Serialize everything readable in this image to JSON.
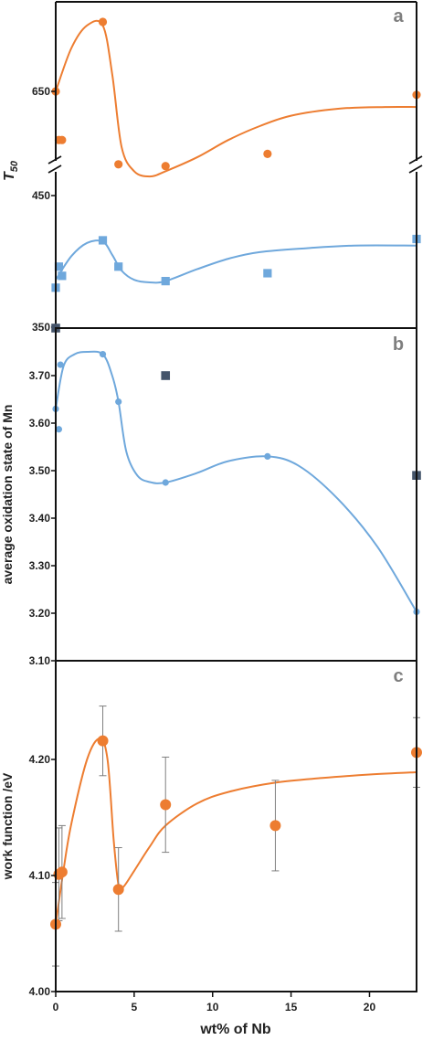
{
  "chart_data": [
    {
      "panel": "a",
      "type": "scatter",
      "ylabel": "T",
      "ylabel_sub": "50",
      "xlim": [
        0,
        23
      ],
      "axis_break": true,
      "upper_segment": {
        "yticks": [
          {
            "value": 650,
            "label": "650"
          }
        ]
      },
      "lower_segment": {
        "yticks": [
          {
            "value": 450,
            "label": "450"
          },
          {
            "value": 350,
            "label": "350"
          }
        ]
      },
      "series": [
        {
          "color": "#ED7D31",
          "marker": "circle",
          "segment": "upper",
          "points": [
            {
              "x": 0,
              "y": 650
            },
            {
              "x": 0.2,
              "y": 622
            },
            {
              "x": 0.4,
              "y": 622
            },
            {
              "x": 3,
              "y": 690
            },
            {
              "x": 4,
              "y": 608
            },
            {
              "x": 7,
              "y": 607
            },
            {
              "x": 13.5,
              "y": 614
            },
            {
              "x": 23,
              "y": 648
            }
          ],
          "curve": [
            {
              "x": 0,
              "y": 650
            },
            {
              "x": 1,
              "y": 675
            },
            {
              "x": 2,
              "y": 688
            },
            {
              "x": 3,
              "y": 688
            },
            {
              "x": 3.6,
              "y": 660
            },
            {
              "x": 4.2,
              "y": 618
            },
            {
              "x": 5,
              "y": 604
            },
            {
              "x": 6,
              "y": 601
            },
            {
              "x": 7,
              "y": 604
            },
            {
              "x": 9,
              "y": 612
            },
            {
              "x": 11,
              "y": 622
            },
            {
              "x": 13,
              "y": 630
            },
            {
              "x": 15,
              "y": 636
            },
            {
              "x": 18,
              "y": 640
            },
            {
              "x": 21,
              "y": 641
            },
            {
              "x": 23,
              "y": 641
            }
          ]
        },
        {
          "color": "#6FA8DC",
          "marker": "square",
          "segment": "lower",
          "points": [
            {
              "x": 0,
              "y": 380
            },
            {
              "x": 0.2,
              "y": 396
            },
            {
              "x": 0.4,
              "y": 389
            },
            {
              "x": 3,
              "y": 416
            },
            {
              "x": 4,
              "y": 396
            },
            {
              "x": 7,
              "y": 385
            },
            {
              "x": 13.5,
              "y": 391
            },
            {
              "x": 23,
              "y": 417
            }
          ],
          "curve": [
            {
              "x": 0,
              "y": 386
            },
            {
              "x": 1,
              "y": 404
            },
            {
              "x": 2,
              "y": 414
            },
            {
              "x": 3,
              "y": 415
            },
            {
              "x": 3.6,
              "y": 405
            },
            {
              "x": 4.2,
              "y": 393
            },
            {
              "x": 5,
              "y": 386
            },
            {
              "x": 6,
              "y": 384
            },
            {
              "x": 7,
              "y": 385
            },
            {
              "x": 9,
              "y": 394
            },
            {
              "x": 11,
              "y": 402
            },
            {
              "x": 13,
              "y": 407
            },
            {
              "x": 16,
              "y": 410
            },
            {
              "x": 19,
              "y": 412
            },
            {
              "x": 23,
              "y": 412
            }
          ]
        }
      ]
    },
    {
      "panel": "b",
      "type": "scatter",
      "ylabel": "average oxidation state of Mn",
      "xlim": [
        0,
        23
      ],
      "ylim": [
        3.1,
        3.8
      ],
      "yticks": [
        "3.10",
        "3.20",
        "3.30",
        "3.40",
        "3.50",
        "3.60",
        "3.70"
      ],
      "series": [
        {
          "color": "#6FA8DC",
          "marker": "circle",
          "points": [
            {
              "x": 0,
              "y": 3.63
            },
            {
              "x": 0.2,
              "y": 3.587
            },
            {
              "x": 0.3,
              "y": 3.723
            },
            {
              "x": 3,
              "y": 3.745
            },
            {
              "x": 4,
              "y": 3.645
            },
            {
              "x": 7,
              "y": 3.475
            },
            {
              "x": 13.5,
              "y": 3.53
            },
            {
              "x": 23,
              "y": 3.203
            }
          ],
          "curve": [
            {
              "x": 0,
              "y": 3.63
            },
            {
              "x": 0.5,
              "y": 3.72
            },
            {
              "x": 1.2,
              "y": 3.745
            },
            {
              "x": 2,
              "y": 3.75
            },
            {
              "x": 3,
              "y": 3.745
            },
            {
              "x": 3.6,
              "y": 3.7
            },
            {
              "x": 4,
              "y": 3.645
            },
            {
              "x": 4.5,
              "y": 3.54
            },
            {
              "x": 5.2,
              "y": 3.49
            },
            {
              "x": 6,
              "y": 3.476
            },
            {
              "x": 7,
              "y": 3.475
            },
            {
              "x": 9,
              "y": 3.495
            },
            {
              "x": 11,
              "y": 3.52
            },
            {
              "x": 13.5,
              "y": 3.53
            },
            {
              "x": 15.5,
              "y": 3.51
            },
            {
              "x": 18,
              "y": 3.44
            },
            {
              "x": 20.5,
              "y": 3.34
            },
            {
              "x": 23,
              "y": 3.203
            }
          ]
        },
        {
          "color": "#44546A",
          "marker": "square",
          "points": [
            {
              "x": 0,
              "y": 3.8
            },
            {
              "x": 7,
              "y": 3.7
            },
            {
              "x": 23,
              "y": 3.49
            }
          ]
        }
      ]
    },
    {
      "panel": "c",
      "type": "scatter",
      "ylabel": "work function /eV",
      "xlabel": "wt% of Nb",
      "xlim": [
        0,
        23
      ],
      "xticks": [
        "0",
        "5",
        "10",
        "15",
        "20"
      ],
      "ylim": [
        4.0,
        4.28
      ],
      "yticks": [
        "4.00",
        "4.10",
        "4.20"
      ],
      "series": [
        {
          "color": "#ED7D31",
          "marker": "circle",
          "error_color": "#7f7f7f",
          "points": [
            {
              "x": 0,
              "y": 4.058,
              "err": 0.036
            },
            {
              "x": 0.2,
              "y": 4.101,
              "err": 0.04
            },
            {
              "x": 0.4,
              "y": 4.103,
              "err": 0.04
            },
            {
              "x": 3,
              "y": 4.216,
              "err": 0.03
            },
            {
              "x": 4,
              "y": 4.088,
              "err": 0.036
            },
            {
              "x": 7,
              "y": 4.161,
              "err": 0.041
            },
            {
              "x": 14,
              "y": 4.143,
              "err": 0.039
            },
            {
              "x": 23,
              "y": 4.206,
              "err": 0.03
            }
          ],
          "curve": [
            {
              "x": 0,
              "y": 4.058
            },
            {
              "x": 0.5,
              "y": 4.105
            },
            {
              "x": 1,
              "y": 4.145
            },
            {
              "x": 2,
              "y": 4.2
            },
            {
              "x": 2.8,
              "y": 4.218
            },
            {
              "x": 3.3,
              "y": 4.2
            },
            {
              "x": 3.7,
              "y": 4.13
            },
            {
              "x": 4,
              "y": 4.092
            },
            {
              "x": 4.3,
              "y": 4.09
            },
            {
              "x": 5,
              "y": 4.104
            },
            {
              "x": 6,
              "y": 4.125
            },
            {
              "x": 7,
              "y": 4.143
            },
            {
              "x": 9,
              "y": 4.162
            },
            {
              "x": 11,
              "y": 4.172
            },
            {
              "x": 14,
              "y": 4.18
            },
            {
              "x": 17,
              "y": 4.184
            },
            {
              "x": 20,
              "y": 4.187
            },
            {
              "x": 23,
              "y": 4.189
            }
          ]
        }
      ]
    }
  ]
}
